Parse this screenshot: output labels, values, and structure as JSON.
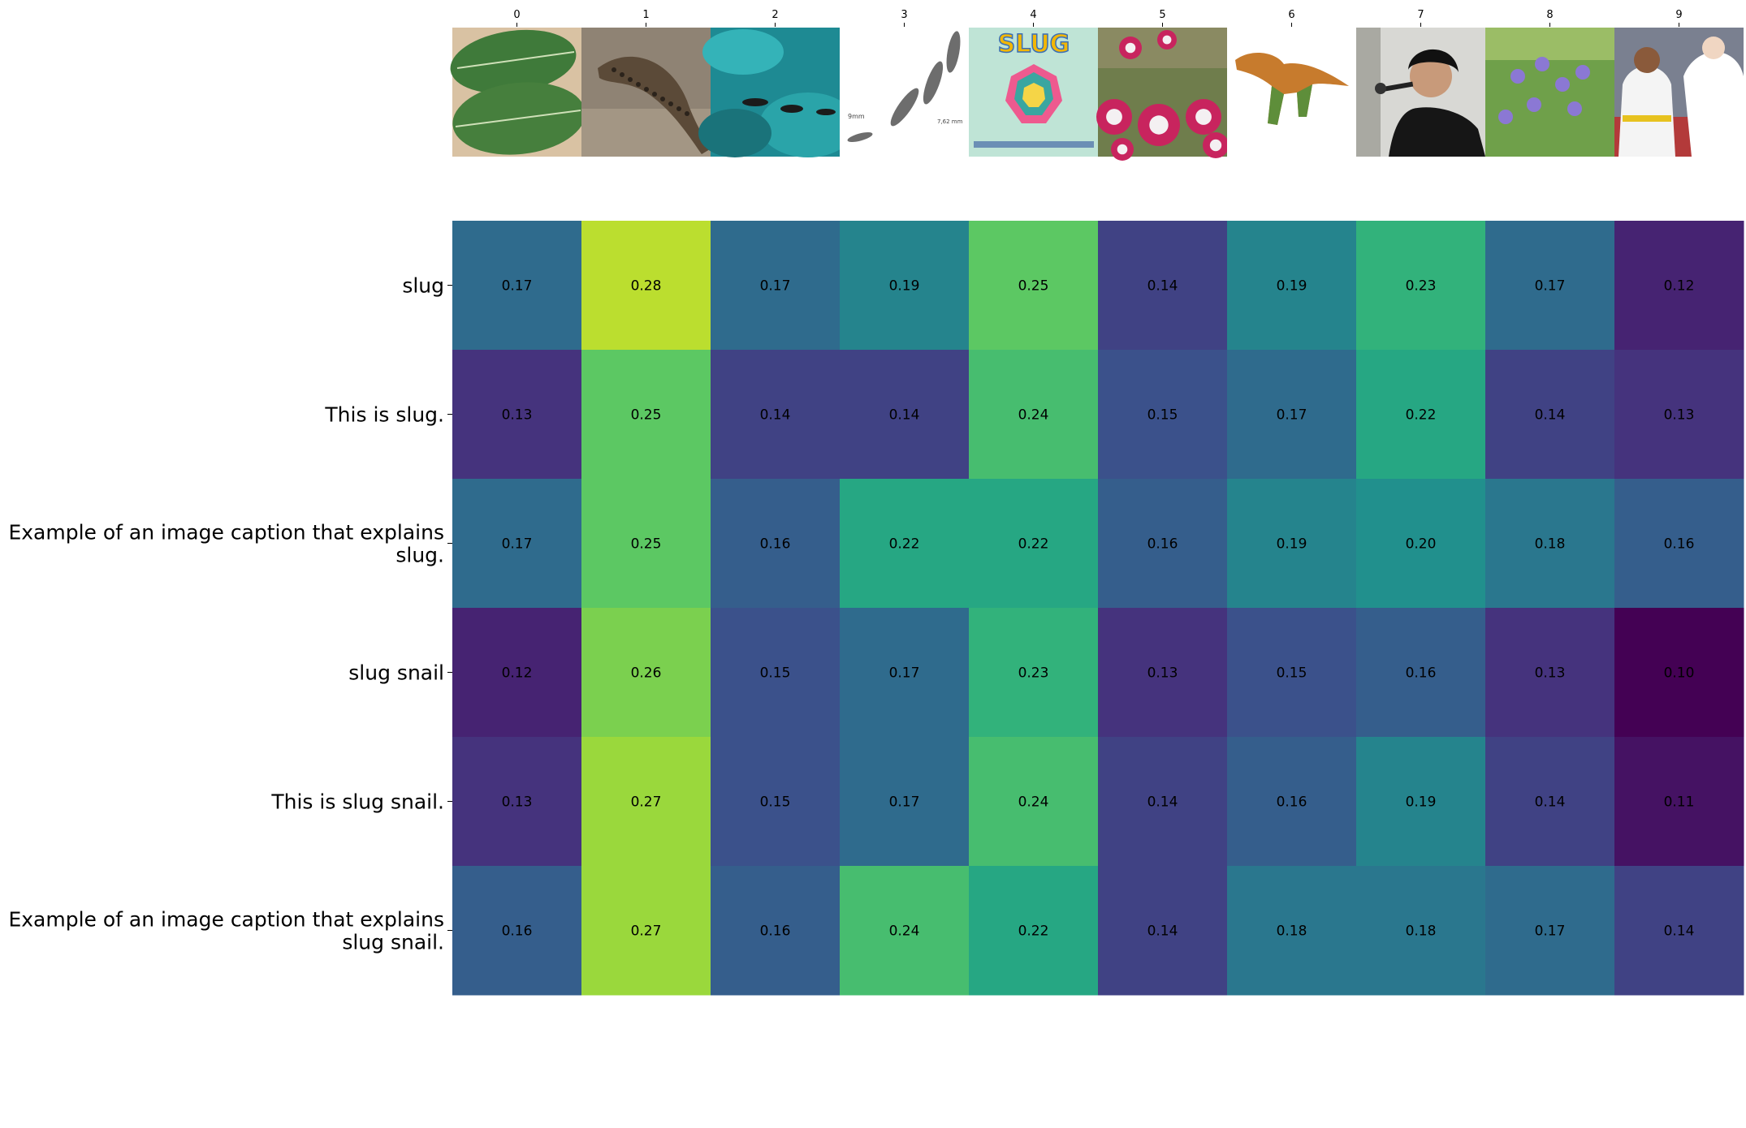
{
  "chart_data": {
    "type": "heatmap",
    "title": "",
    "xlabel": "",
    "ylabel": "",
    "x_tick_labels": [
      "0",
      "1",
      "2",
      "3",
      "4",
      "5",
      "6",
      "7",
      "8",
      "9"
    ],
    "image_thumbnails": [
      "green-leaves-icon",
      "slug-on-rock-icon",
      "fish-underwater-icon",
      "bullets-icon",
      "slug-poster-icon",
      "pink-flowers-icon",
      "dinosaur-model-icon",
      "rapper-microphone-icon",
      "purple-flowers-icon",
      "karate-kids-icon"
    ],
    "poster_text": "SLUG",
    "bullet_labels": [
      "9mm",
      "7,62 mm"
    ],
    "row_labels": [
      [
        "slug"
      ],
      [
        "This is slug."
      ],
      [
        "Example of an image caption that explains",
        "slug."
      ],
      [
        "slug snail"
      ],
      [
        "This is slug snail."
      ],
      [
        "Example of an image caption that explains",
        "slug snail."
      ]
    ],
    "values": [
      [
        0.17,
        0.28,
        0.17,
        0.19,
        0.25,
        0.14,
        0.19,
        0.23,
        0.17,
        0.12
      ],
      [
        0.13,
        0.25,
        0.14,
        0.14,
        0.24,
        0.15,
        0.17,
        0.22,
        0.14,
        0.13
      ],
      [
        0.17,
        0.25,
        0.16,
        0.22,
        0.22,
        0.16,
        0.19,
        0.2,
        0.18,
        0.16
      ],
      [
        0.12,
        0.26,
        0.15,
        0.17,
        0.23,
        0.13,
        0.15,
        0.16,
        0.13,
        0.1
      ],
      [
        0.13,
        0.27,
        0.15,
        0.17,
        0.24,
        0.14,
        0.16,
        0.19,
        0.14,
        0.11
      ],
      [
        0.16,
        0.27,
        0.16,
        0.24,
        0.22,
        0.14,
        0.18,
        0.18,
        0.17,
        0.14
      ]
    ],
    "value_format": "2 decimals",
    "colormap": "viridis",
    "color_range": [
      0.1,
      0.3
    ],
    "legend": "none",
    "grid": false
  }
}
